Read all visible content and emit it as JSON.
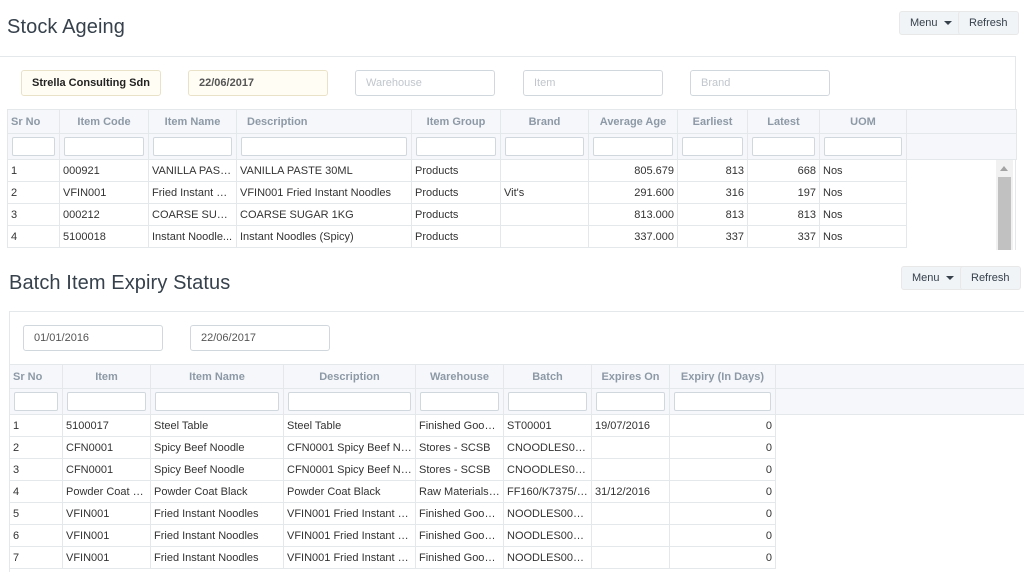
{
  "stock": {
    "title": "Stock Ageing",
    "menu_label": "Menu",
    "refresh_label": "Refresh",
    "filters": {
      "company": "Strella Consulting Sdn Bl",
      "date": "22/06/2017",
      "warehouse_placeholder": "Warehouse",
      "item_placeholder": "Item",
      "brand_placeholder": "Brand"
    },
    "columns": [
      "Sr No",
      "Item Code",
      "Item Name",
      "Description",
      "Item Group",
      "Brand",
      "Average Age",
      "Earliest",
      "Latest",
      "UOM"
    ],
    "rows": [
      [
        "1",
        "000921",
        "VANILLA PASTE...",
        "VANILLA PASTE 30ML",
        "Products",
        "",
        "805.679",
        "813",
        "668",
        "Nos"
      ],
      [
        "2",
        "VFIN001",
        "Fried Instant N...",
        "VFIN001 Fried Instant Noodles",
        "Products",
        "Vit's",
        "291.600",
        "316",
        "197",
        "Nos"
      ],
      [
        "3",
        "000212",
        "COARSE SUGAR...",
        "COARSE SUGAR 1KG",
        "Products",
        "",
        "813.000",
        "813",
        "813",
        "Nos"
      ],
      [
        "4",
        "5100018",
        "Instant Noodle...",
        "Instant Noodles (Spicy)",
        "Products",
        "",
        "337.000",
        "337",
        "337",
        "Nos"
      ]
    ]
  },
  "batch": {
    "title": "Batch Item Expiry Status",
    "menu_label": "Menu",
    "refresh_label": "Refresh",
    "filters": {
      "from_date": "01/01/2016",
      "to_date": "22/06/2017"
    },
    "columns": [
      "Sr No",
      "Item",
      "Item Name",
      "Description",
      "Warehouse",
      "Batch",
      "Expires On",
      "Expiry (In Days)"
    ],
    "rows": [
      [
        "1",
        "5100017",
        "Steel Table",
        "Steel Table",
        "Finished Goods...",
        "ST00001",
        "19/07/2016",
        "0"
      ],
      [
        "2",
        "CFN0001",
        "Spicy Beef Noodle",
        "CFN0001 Spicy Beef Noo...",
        "Stores - SCSB",
        "CNOODLES0001",
        "",
        "0"
      ],
      [
        "3",
        "CFN0001",
        "Spicy Beef Noodle",
        "CFN0001 Spicy Beef Noo...",
        "Stores - SCSB",
        "CNOODLES0002",
        "",
        "0"
      ],
      [
        "4",
        "Powder Coat Bl...",
        "Powder Coat Black",
        "Powder Coat Black",
        "Raw Materials -...",
        "FF160/K7375/C...",
        "31/12/2016",
        "0"
      ],
      [
        "5",
        "VFIN001",
        "Fried Instant Noodles",
        "VFIN001 Fried Instant No...",
        "Finished Goods...",
        "NOODLES00001",
        "",
        "0"
      ],
      [
        "6",
        "VFIN001",
        "Fried Instant Noodles",
        "VFIN001 Fried Instant No...",
        "Finished Goods...",
        "NOODLES00002",
        "",
        "0"
      ],
      [
        "7",
        "VFIN001",
        "Fried Instant Noodles",
        "VFIN001 Fried Instant No...",
        "Finished Goods...",
        "NOODLES00003",
        "",
        "0"
      ]
    ]
  }
}
